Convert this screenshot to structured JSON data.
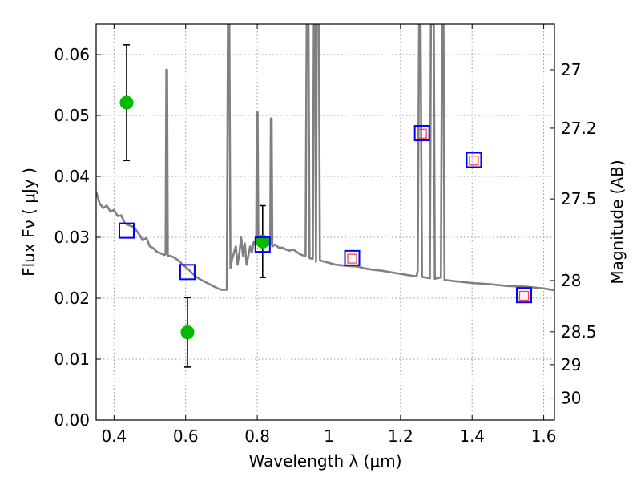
{
  "chart_data": {
    "type": "scatter",
    "title": "",
    "xlabel": "Wavelength  λ (μm)",
    "ylabel": "Flux  Fν  ( μJy )",
    "y2label": "Magnitude (AB)",
    "xlim": [
      0.35,
      1.63
    ],
    "ylim": [
      0.0,
      0.065
    ],
    "x_ticks": [
      0.4,
      0.6,
      0.8,
      1.0,
      1.2,
      1.4,
      1.6
    ],
    "x_tick_labels": [
      "0.4",
      "0.6",
      "0.8",
      "1",
      "1.2",
      "1.4",
      "1.6"
    ],
    "y_ticks": [
      0.0,
      0.01,
      0.02,
      0.03,
      0.04,
      0.05,
      0.06
    ],
    "y_tick_labels": [
      "0.00",
      "0.01",
      "0.02",
      "0.03",
      "0.04",
      "0.05",
      "0.06"
    ],
    "y2_ticks": [
      {
        "label": "27",
        "flux": 0.0575
      },
      {
        "label": "27.2",
        "flux": 0.0479
      },
      {
        "label": "27.5",
        "flux": 0.0363
      },
      {
        "label": "28",
        "flux": 0.0229
      },
      {
        "label": "28.5",
        "flux": 0.0145
      },
      {
        "label": "29",
        "flux": 0.0091
      },
      {
        "label": "30",
        "flux": 0.0036
      }
    ],
    "grid": true,
    "legend": "none",
    "series": [
      {
        "type": "line",
        "color": "#808080",
        "points": [
          [
            0.35,
            0.0375
          ],
          [
            0.36,
            0.0355
          ],
          [
            0.37,
            0.0348
          ],
          [
            0.38,
            0.0352
          ],
          [
            0.39,
            0.0342
          ],
          [
            0.4,
            0.0345
          ],
          [
            0.41,
            0.0335
          ],
          [
            0.42,
            0.0336
          ],
          [
            0.43,
            0.0323
          ],
          [
            0.44,
            0.032
          ],
          [
            0.45,
            0.0318
          ],
          [
            0.46,
            0.0313
          ],
          [
            0.47,
            0.0305
          ],
          [
            0.48,
            0.0295
          ],
          [
            0.49,
            0.0299
          ],
          [
            0.5,
            0.0285
          ],
          [
            0.51,
            0.0282
          ],
          [
            0.52,
            0.0276
          ],
          [
            0.53,
            0.0274
          ],
          [
            0.54,
            0.0271
          ],
          [
            0.544,
            0.0272
          ],
          [
            0.546,
            0.0575
          ],
          [
            0.548,
            0.0575
          ],
          [
            0.55,
            0.027
          ],
          [
            0.56,
            0.0269
          ],
          [
            0.57,
            0.0266
          ],
          [
            0.58,
            0.0262
          ],
          [
            0.59,
            0.0256
          ],
          [
            0.6,
            0.0251
          ],
          [
            0.61,
            0.0246
          ],
          [
            0.62,
            0.024
          ],
          [
            0.63,
            0.0235
          ],
          [
            0.64,
            0.0231
          ],
          [
            0.65,
            0.0228
          ],
          [
            0.66,
            0.0225
          ],
          [
            0.67,
            0.0222
          ],
          [
            0.68,
            0.0219
          ],
          [
            0.69,
            0.0216
          ],
          [
            0.7,
            0.0214
          ],
          [
            0.715,
            0.0214
          ],
          [
            0.718,
            0.065
          ],
          [
            0.722,
            0.065
          ],
          [
            0.725,
            0.025
          ],
          [
            0.73,
            0.0265
          ],
          [
            0.74,
            0.0285
          ],
          [
            0.745,
            0.0255
          ],
          [
            0.75,
            0.0275
          ],
          [
            0.755,
            0.03
          ],
          [
            0.76,
            0.027
          ],
          [
            0.765,
            0.029
          ],
          [
            0.77,
            0.0255
          ],
          [
            0.78,
            0.0285
          ],
          [
            0.785,
            0.0275
          ],
          [
            0.79,
            0.0292
          ],
          [
            0.797,
            0.029
          ],
          [
            0.799,
            0.0505
          ],
          [
            0.801,
            0.0505
          ],
          [
            0.803,
            0.03
          ],
          [
            0.81,
            0.0288
          ],
          [
            0.82,
            0.03
          ],
          [
            0.83,
            0.029
          ],
          [
            0.836,
            0.0288
          ],
          [
            0.838,
            0.0495
          ],
          [
            0.84,
            0.0495
          ],
          [
            0.842,
            0.0285
          ],
          [
            0.85,
            0.0288
          ],
          [
            0.86,
            0.0283
          ],
          [
            0.87,
            0.0283
          ],
          [
            0.88,
            0.028
          ],
          [
            0.89,
            0.0278
          ],
          [
            0.9,
            0.028
          ],
          [
            0.91,
            0.0276
          ],
          [
            0.92,
            0.0272
          ],
          [
            0.93,
            0.027
          ],
          [
            0.935,
            0.027
          ],
          [
            0.938,
            0.065
          ],
          [
            0.943,
            0.065
          ],
          [
            0.946,
            0.0266
          ],
          [
            0.95,
            0.0265
          ],
          [
            0.955,
            0.0265
          ],
          [
            0.958,
            0.065
          ],
          [
            0.962,
            0.065
          ],
          [
            0.964,
            0.026
          ],
          [
            0.966,
            0.065
          ],
          [
            0.972,
            0.065
          ],
          [
            0.975,
            0.0262
          ],
          [
            1.0,
            0.0258
          ],
          [
            1.02,
            0.0255
          ],
          [
            1.05,
            0.0253
          ],
          [
            1.08,
            0.0252
          ],
          [
            1.1,
            0.0249
          ],
          [
            1.12,
            0.0247
          ],
          [
            1.15,
            0.0245
          ],
          [
            1.18,
            0.0242
          ],
          [
            1.2,
            0.024
          ],
          [
            1.23,
            0.0237
          ],
          [
            1.245,
            0.0236
          ],
          [
            1.248,
            0.0245
          ],
          [
            1.252,
            0.065
          ],
          [
            1.256,
            0.065
          ],
          [
            1.26,
            0.0235
          ],
          [
            1.28,
            0.0233
          ],
          [
            1.282,
            0.0233
          ],
          [
            1.285,
            0.065
          ],
          [
            1.293,
            0.065
          ],
          [
            1.296,
            0.0232
          ],
          [
            1.31,
            0.0234
          ],
          [
            1.313,
            0.0234
          ],
          [
            1.316,
            0.065
          ],
          [
            1.32,
            0.065
          ],
          [
            1.323,
            0.023
          ],
          [
            1.35,
            0.0228
          ],
          [
            1.4,
            0.0225
          ],
          [
            1.45,
            0.0223
          ],
          [
            1.5,
            0.022
          ],
          [
            1.55,
            0.0219
          ],
          [
            1.6,
            0.0216
          ],
          [
            1.63,
            0.0213
          ]
        ]
      },
      {
        "type": "scatter",
        "marker": "circle",
        "color": "#00bb00",
        "points": [
          {
            "x": 0.435,
            "y": 0.0521,
            "yerr": 0.0095
          },
          {
            "x": 0.605,
            "y": 0.0144,
            "yerr": 0.0057
          },
          {
            "x": 0.815,
            "y": 0.0293,
            "yerr": 0.0059
          }
        ]
      },
      {
        "type": "scatter",
        "marker": "square",
        "color": "#0000ff",
        "points": [
          {
            "x": 0.435,
            "y": 0.0311
          },
          {
            "x": 0.605,
            "y": 0.0243
          },
          {
            "x": 0.815,
            "y": 0.0288
          },
          {
            "x": 1.065,
            "y": 0.0266
          },
          {
            "x": 1.26,
            "y": 0.0471
          },
          {
            "x": 1.405,
            "y": 0.0427
          },
          {
            "x": 1.545,
            "y": 0.0205
          }
        ]
      },
      {
        "type": "scatter",
        "marker": "square",
        "color": "#ff4040",
        "points": [
          {
            "x": 1.065,
            "y": 0.0265
          },
          {
            "x": 1.26,
            "y": 0.047
          },
          {
            "x": 1.405,
            "y": 0.0426
          },
          {
            "x": 1.545,
            "y": 0.0204
          }
        ]
      }
    ]
  }
}
